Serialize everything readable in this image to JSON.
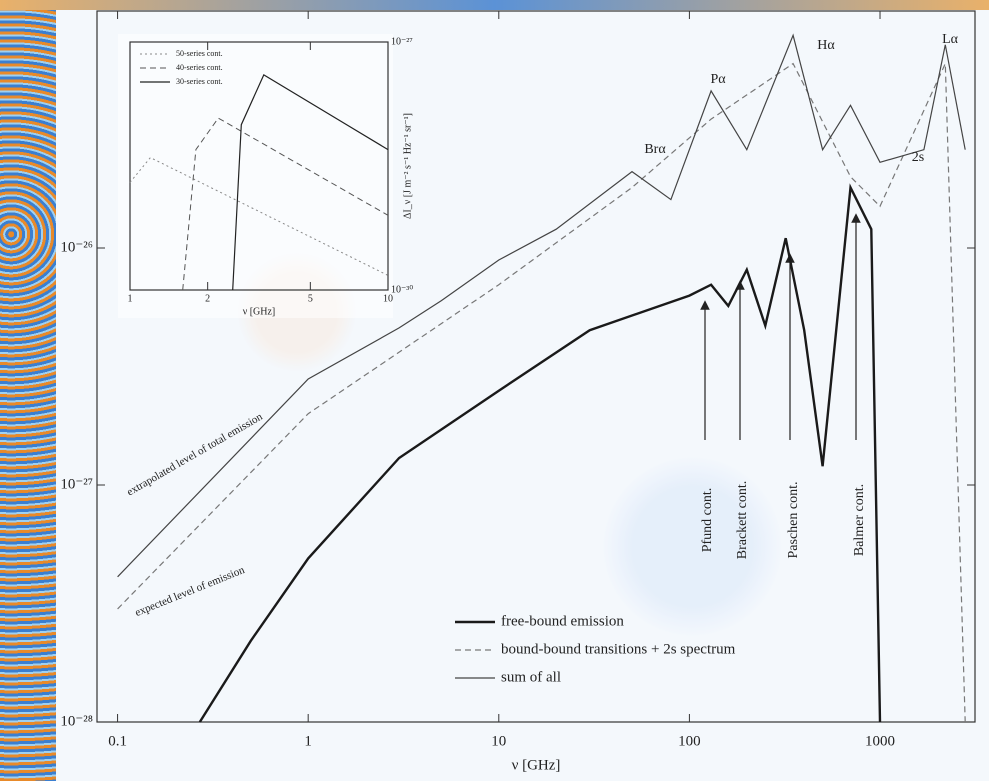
{
  "chart_data": [
    {
      "type": "line",
      "xlog": true,
      "ylog": true,
      "xlabel": "ν [GHz]",
      "xlim": [
        0.078,
        3150
      ],
      "ylim": [
        1e-28,
        1e-25
      ],
      "xticks": [
        0.1,
        1,
        10,
        100,
        1000
      ],
      "yticks": [
        {
          "value": 1e-28,
          "label": "10⁻²⁸"
        },
        {
          "value": 1e-27,
          "label": "10⁻²⁷"
        },
        {
          "value": 1e-26,
          "label": "10⁻²⁶"
        }
      ],
      "legend": "lower center",
      "series": [
        {
          "name": "free-bound emission",
          "color": "#1a1a1a",
          "style": "solid",
          "width": 2.4,
          "x": [
            0.27,
            0.5,
            1,
            3,
            10,
            30,
            100,
            130,
            160,
            200,
            250,
            320,
            400,
            500,
            700,
            900,
            1000
          ],
          "values": [
            1e-28,
            2.2e-28,
            4.9e-28,
            1.3e-27,
            2.5e-27,
            4.5e-27,
            6.3e-27,
            7e-27,
            5.7e-27,
            8.1e-27,
            4.7e-27,
            1.1e-26,
            4.5e-27,
            1.2e-27,
            1.8e-26,
            1.2e-26,
            1e-28
          ]
        },
        {
          "name": "bound-bound transitions + 2s spectrum",
          "color": "#777777",
          "style": "dashed",
          "width": 1.2,
          "x": [
            0.1,
            1,
            10,
            50,
            130,
            350,
            700,
            1000,
            2200,
            2800
          ],
          "values": [
            3e-28,
            2e-27,
            7e-27,
            1.8e-26,
            3.5e-26,
            6e-26,
            2e-26,
            1.5e-26,
            6e-26,
            1e-28
          ]
        },
        {
          "name": "sum of all",
          "color": "#444444",
          "style": "solid",
          "width": 1.2,
          "x": [
            0.1,
            1,
            3,
            5,
            10,
            20,
            50,
            80,
            130,
            200,
            350,
            500,
            700,
            1000,
            1700,
            2200,
            2800
          ],
          "values": [
            4.1e-28,
            2.8e-27,
            4.6e-27,
            6e-27,
            8.9e-27,
            1.2e-26,
            2.1e-26,
            1.6e-26,
            4.6e-26,
            2.6e-26,
            7.9e-26,
            2.6e-26,
            4e-26,
            2.3e-26,
            2.6e-26,
            7.2e-26,
            2.6e-26
          ]
        }
      ],
      "annotations": [
        "Brα",
        "Pα",
        "Hα",
        "Lα",
        "2s",
        "Pfund cont.",
        "Brackett cont.",
        "Paschen cont.",
        "Balmer cont.",
        "extrapolated level of total emission",
        "expected level of emission"
      ]
    },
    {
      "type": "line",
      "xlog": true,
      "ylog": true,
      "xlabel": "ν [GHz]",
      "ylabel": "ΔI_ν [J m⁻² s⁻¹ Hz⁻¹ sr⁻¹]",
      "xlim": [
        1,
        10
      ],
      "ylim": [
        1e-30,
        1e-27
      ],
      "xticks": [
        1,
        2,
        5,
        10
      ],
      "yticks": [
        {
          "value": 1e-30,
          "label": "10⁻³⁰"
        },
        {
          "value": 1e-27,
          "label": "10⁻²⁷"
        }
      ],
      "legend": "upper left",
      "series": [
        {
          "name": "50-series cont.",
          "color": "#888888",
          "style": "dotted",
          "width": 1,
          "x": [
            1,
            1.2,
            10
          ],
          "values": [
            2e-29,
            4e-29,
            1.5e-30
          ]
        },
        {
          "name": "40-series cont.",
          "color": "#555555",
          "style": "dashed",
          "width": 1,
          "x": [
            1.6,
            1.8,
            2.2,
            10
          ],
          "values": [
            1e-30,
            5e-29,
            1.2e-28,
            8e-30
          ]
        },
        {
          "name": "30-series cont.",
          "color": "#222222",
          "style": "solid",
          "width": 1.2,
          "x": [
            2.5,
            2.7,
            3.3,
            10
          ],
          "values": [
            1e-30,
            1e-28,
            4e-28,
            5e-29
          ]
        }
      ]
    }
  ]
}
